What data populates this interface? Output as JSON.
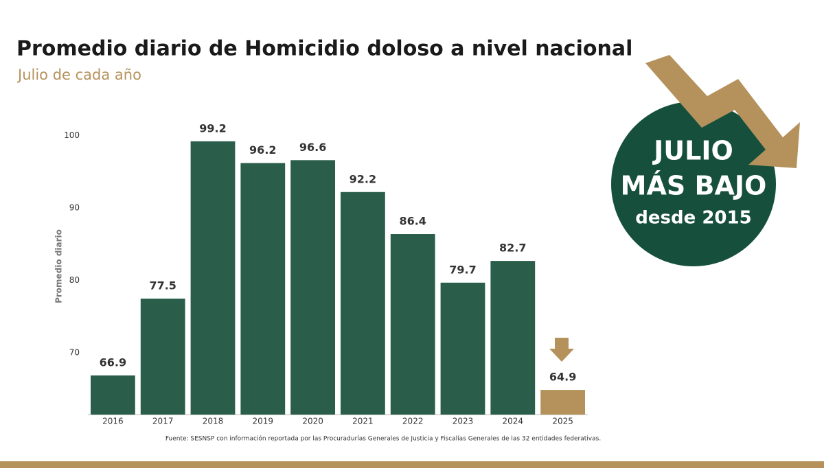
{
  "chart_data": {
    "type": "bar",
    "title": "Promedio diario de Homicidio doloso a nivel nacional",
    "subtitle": "Julio de cada año",
    "y_label": "Promedio diario",
    "categories": [
      "2016",
      "2017",
      "2018",
      "2019",
      "2020",
      "2021",
      "2022",
      "2023",
      "2024",
      "2025"
    ],
    "values": [
      66.9,
      77.5,
      99.2,
      96.2,
      96.6,
      92.2,
      86.4,
      79.7,
      82.7,
      64.9
    ],
    "colors": [
      "#2a5e4b",
      "#2a5e4b",
      "#2a5e4b",
      "#2a5e4b",
      "#2a5e4b",
      "#2a5e4b",
      "#2a5e4b",
      "#2a5e4b",
      "#2a5e4b",
      "#b5925c"
    ],
    "ylim": [
      61.5,
      102.5
    ],
    "yticks": [
      70,
      80,
      90,
      100
    ],
    "grid": false,
    "badge": {
      "line1": "JULIO",
      "line2": "MÁS BAJO",
      "line3": "desde 2015"
    },
    "source": "Fuente: SESNSP con información reportada por las Procuradurías Generales de Justicia y Fiscalías Generales de las 32 entidades federativas."
  }
}
